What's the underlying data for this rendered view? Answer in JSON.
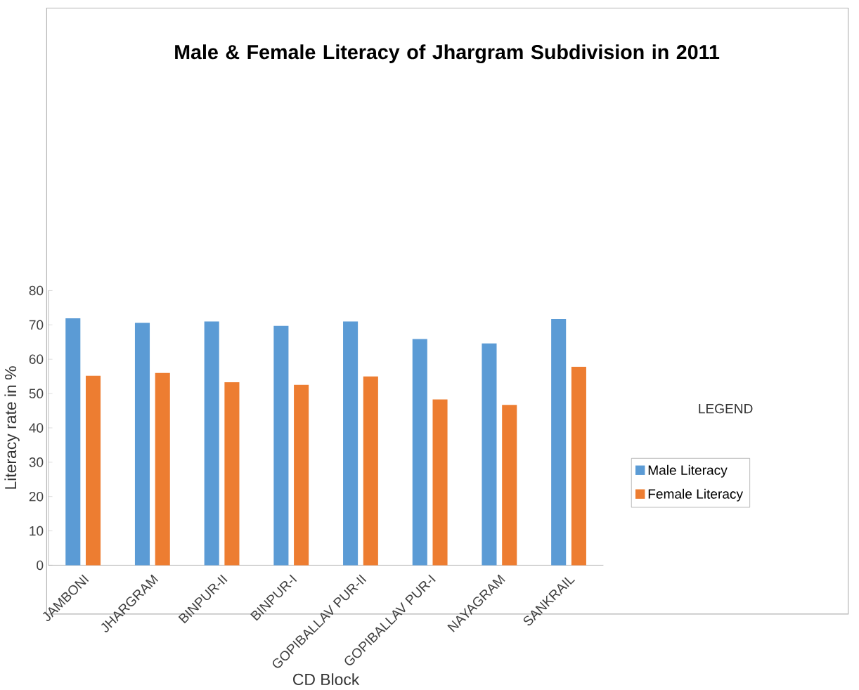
{
  "chart_data": {
    "type": "bar",
    "title": "Male & Female Literacy of Jhargram Subdivision in 2011",
    "xlabel": "CD Block",
    "ylabel": "Literacy rate in %",
    "legend_title": "LEGEND",
    "categories": [
      "JAMBONI",
      "JHARGRAM",
      "BINPUR-II",
      "BINPUR-I",
      "GOPIBALLAV PUR-II",
      "GOPIBALLAV PUR-I",
      "NAYAGRAM",
      "SANKRAIL"
    ],
    "series": [
      {
        "name": "Male Literacy",
        "color": "#5b9bd5",
        "values": [
          71.9,
          70.6,
          71.0,
          69.7,
          71.0,
          65.9,
          64.6,
          71.7
        ]
      },
      {
        "name": "Female Literacy",
        "color": "#ed7d31",
        "values": [
          55.2,
          56.0,
          53.3,
          52.5,
          55.0,
          48.3,
          46.7,
          57.8
        ]
      }
    ],
    "ylim": [
      0,
      80
    ],
    "yticks": [
      0,
      10,
      20,
      30,
      40,
      50,
      60,
      70,
      80
    ],
    "grid": false,
    "legend": "right"
  }
}
